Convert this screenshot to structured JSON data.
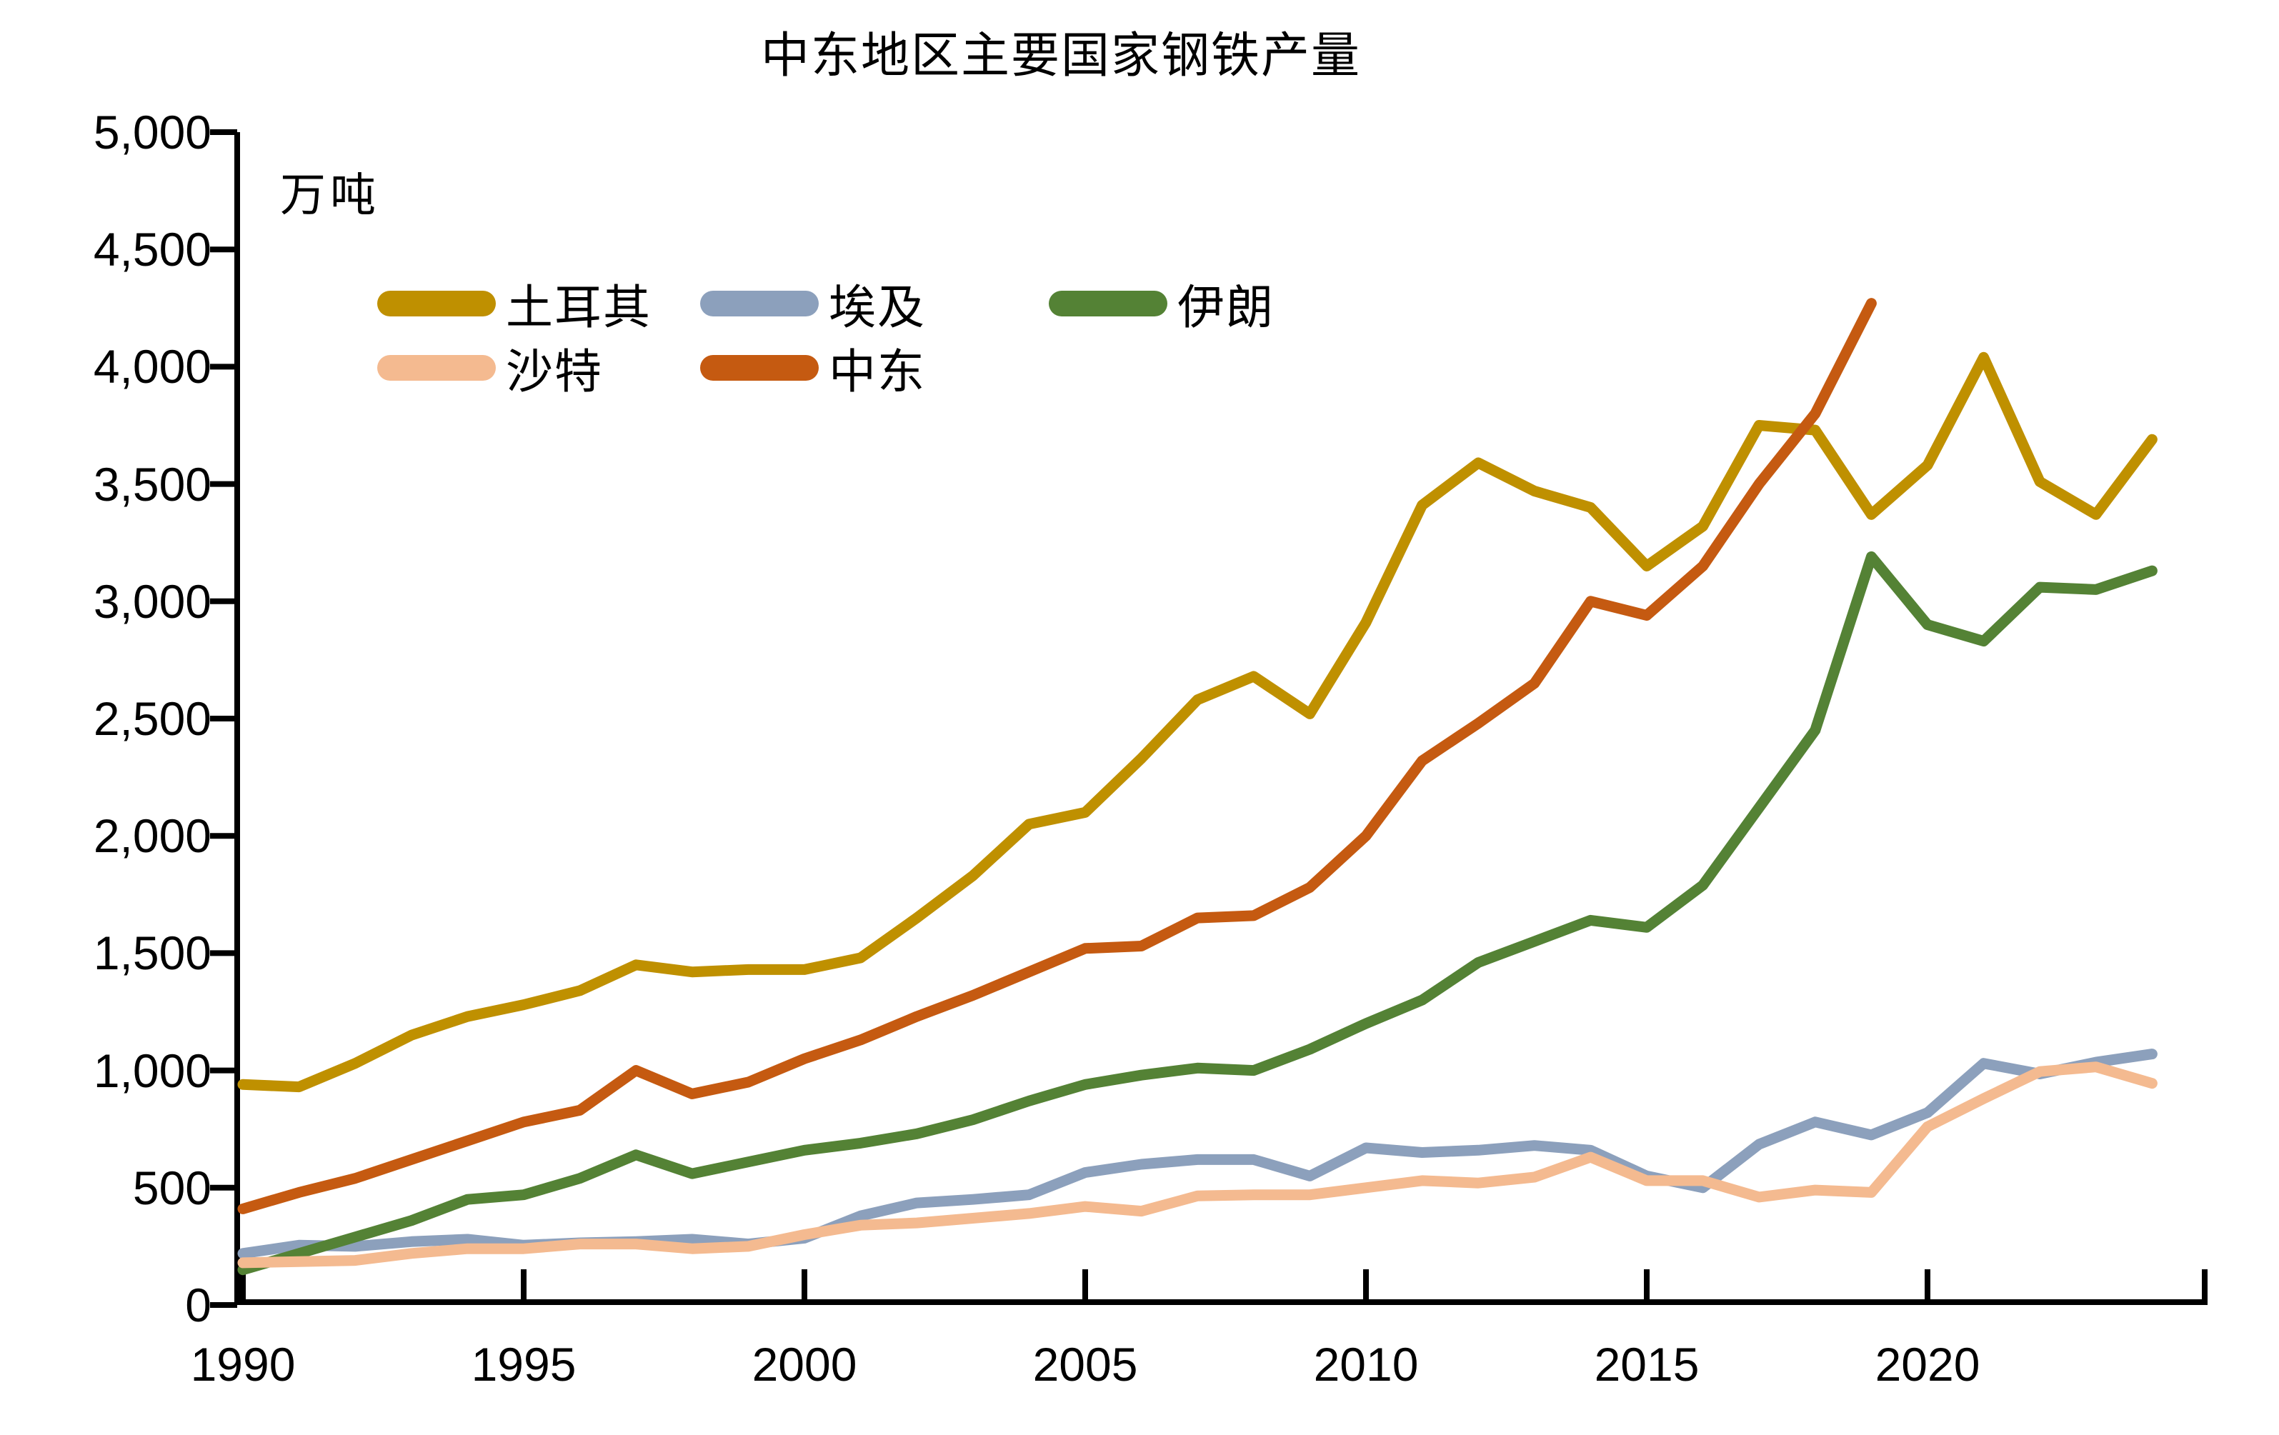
{
  "chart_data": {
    "type": "line",
    "title": "中东地区主要国家钢铁产量",
    "unit_label": "万吨",
    "xlabel": "",
    "ylabel": "万吨",
    "ylim": [
      0,
      5000
    ],
    "xlim": [
      1990,
      2025
    ],
    "grid": false,
    "legend_position": "top-left-inside",
    "axis_color": "#000000",
    "y_ticks": [
      "0",
      "500",
      "1,000",
      "1,500",
      "2,000",
      "2,500",
      "3,000",
      "3,500",
      "4,000",
      "4,500",
      "5,000"
    ],
    "x_ticks": [
      "1990",
      "1995",
      "2000",
      "2005",
      "2010",
      "2015",
      "2020"
    ],
    "x_tick_years": [
      1990,
      1995,
      2000,
      2005,
      2010,
      2015,
      2020
    ],
    "series": [
      {
        "id": "turkey",
        "name": "土耳其",
        "color": "#BF9000",
        "start_year": 1990,
        "values": [
          940,
          930,
          1030,
          1150,
          1230,
          1280,
          1340,
          1450,
          1420,
          1430,
          1430,
          1480,
          1650,
          1830,
          2050,
          2100,
          2330,
          2580,
          2680,
          2520,
          2910,
          3410,
          3590,
          3470,
          3400,
          3150,
          3320,
          3750,
          3730,
          3370,
          3580,
          4040,
          3510,
          3370,
          3690
        ]
      },
      {
        "id": "egypt",
        "name": "埃及",
        "color": "#8CA0BC",
        "start_year": 1990,
        "values": [
          220,
          255,
          250,
          270,
          280,
          255,
          265,
          270,
          280,
          260,
          285,
          380,
          435,
          450,
          470,
          565,
          600,
          620,
          620,
          550,
          670,
          650,
          660,
          680,
          660,
          550,
          500,
          685,
          780,
          725,
          820,
          1030,
          985,
          1035,
          1070
        ]
      },
      {
        "id": "iran",
        "name": "伊朗",
        "color": "#548235",
        "start_year": 1990,
        "values": [
          150,
          220,
          290,
          360,
          450,
          470,
          540,
          640,
          560,
          610,
          660,
          690,
          730,
          790,
          870,
          940,
          980,
          1010,
          1000,
          1090,
          1200,
          1300,
          1460,
          1550,
          1640,
          1610,
          1790,
          2120,
          2450,
          3190,
          2900,
          2830,
          3060,
          3050,
          3130
        ]
      },
      {
        "id": "saudi",
        "name": "沙特",
        "color": "#F4BA90",
        "start_year": 1990,
        "values": [
          180,
          185,
          190,
          220,
          240,
          240,
          260,
          260,
          240,
          250,
          300,
          340,
          350,
          370,
          390,
          420,
          400,
          465,
          470,
          470,
          500,
          530,
          520,
          545,
          630,
          530,
          530,
          460,
          490,
          480,
          760,
          880,
          995,
          1015,
          945
        ]
      },
      {
        "id": "middle-east",
        "name": "中东",
        "color": "#C55A11",
        "start_year": 1990,
        "values": [
          410,
          480,
          540,
          620,
          700,
          780,
          830,
          1000,
          900,
          950,
          1050,
          1130,
          1230,
          1320,
          1420,
          1520,
          1530,
          1650,
          1660,
          1780,
          2000,
          2320,
          2480,
          2650,
          3000,
          2940,
          3150,
          3500,
          3800,
          4270
        ]
      }
    ],
    "legend_rows": [
      [
        0,
        1,
        2
      ],
      [
        3,
        4
      ]
    ]
  }
}
